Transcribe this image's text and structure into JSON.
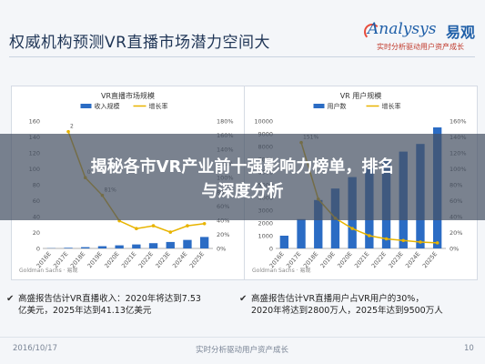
{
  "slide": {
    "title": "权威机构预测VR直播市场潜力空间大",
    "logo_brand": "Analysys",
    "logo_cn": "易观",
    "logo_tagline": "实时分析驱动用户资产成长"
  },
  "banner": {
    "line1": "揭秘各市VR产业前十强影响力榜单，排名",
    "line2": "与深度分析"
  },
  "notes": [
    {
      "line1": "高盛报告估计VR直播收入：2020年将达到7.53",
      "line2": "亿美元，2025年达到41.13亿美元"
    },
    {
      "line1": "高盛报告估计VR直播用户占VR用户的30%，",
      "line2": "2020年将达到2800万人，2025年达到9500万人"
    }
  ],
  "footer": {
    "date": "2016/10/17",
    "center": "实时分析驱动用户资产成长",
    "page": "10"
  },
  "chart_data": [
    {
      "type": "bar",
      "title": "VR直播市场规模",
      "legend": [
        "收入规模",
        "增长率"
      ],
      "legend_placement": "top",
      "source": "Goldman Sachs · 易观",
      "categories": [
        "2016E",
        "2017E",
        "2018E",
        "2019E",
        "2020E",
        "2021E",
        "2022E",
        "2023E",
        "2024E",
        "2025E"
      ],
      "series": [
        {
          "name": "收入规模",
          "type": "bar",
          "color": "#2b6cc4",
          "values": [
            0.3,
            0.8,
            1.6,
            2.8,
            3.9,
            5.0,
            6.6,
            8.1,
            10.7,
            14.4
          ]
        },
        {
          "name": "增长率",
          "type": "line",
          "axis": "right",
          "color": "#e8b400",
          "values": [
            null,
            165,
            100,
            75,
            39,
            28,
            32,
            23,
            32,
            35
          ]
        }
      ],
      "yticks_left": [
        "0",
        "20",
        "40",
        "60",
        "80",
        "100",
        "120",
        "140",
        "160"
      ],
      "yticks_right": [
        "0%",
        "20%",
        "40%",
        "60%",
        "80%",
        "100%",
        "120%",
        "140%",
        "160%",
        "180%"
      ],
      "point_labels": [
        "2",
        "0",
        "81%"
      ],
      "ylim": [
        0,
        160
      ],
      "y2lim": [
        0,
        180
      ],
      "grid": false
    },
    {
      "type": "bar",
      "title": "VR 用户规模",
      "legend": [
        "用户数",
        "增长率"
      ],
      "legend_placement": "top",
      "source": "Goldman Sachs · 易观",
      "categories": [
        "2016E",
        "2017E",
        "2018E",
        "2019E",
        "2020E",
        "2021E",
        "2022E",
        "2023E",
        "2024E",
        "2025E"
      ],
      "series": [
        {
          "name": "用户数",
          "type": "bar",
          "color": "#2b6cc4",
          "values": [
            1000,
            2300,
            3800,
            4700,
            5600,
            6300,
            6900,
            7600,
            8200,
            9500
          ]
        },
        {
          "name": "增长率",
          "type": "line",
          "axis": "right",
          "color": "#e8b400",
          "values": [
            null,
            133,
            62,
            38,
            25,
            16,
            12,
            10,
            8,
            7
          ]
        }
      ],
      "yticks_left": [
        "0",
        "1000",
        "2000",
        "3000",
        "4000",
        "5000",
        "6000",
        "7000",
        "8000",
        "9000",
        "10000"
      ],
      "yticks_right": [
        "0%",
        "20%",
        "40%",
        "60%",
        "80%",
        "100%",
        "120%",
        "140%",
        "160%"
      ],
      "point_labels": [
        "151%"
      ],
      "ylim": [
        0,
        10000
      ],
      "y2lim": [
        0,
        160
      ],
      "grid": false
    }
  ]
}
